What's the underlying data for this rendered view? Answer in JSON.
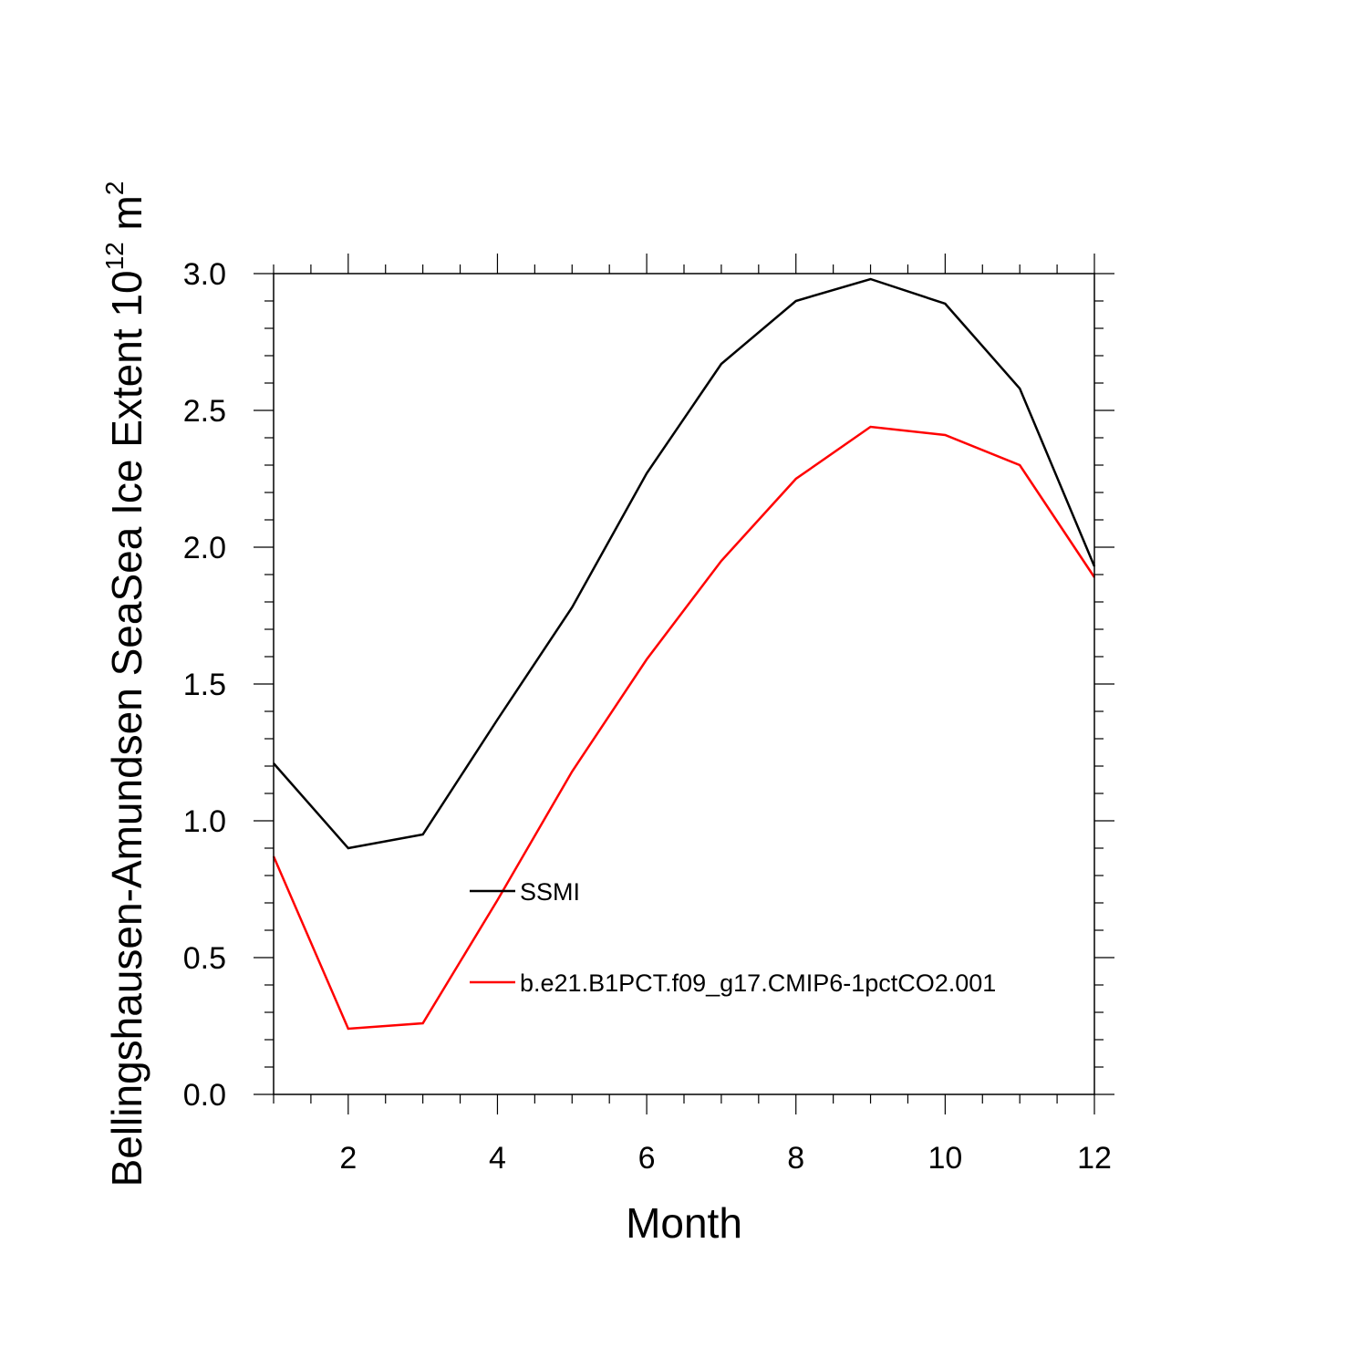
{
  "chart_data": {
    "type": "line",
    "title": "",
    "xlabel": "Month",
    "ylabel": {
      "main": "Bellingshausen-Amundsen SeaSea Ice Extent 10",
      "exponent": "12",
      "unit_prefix": " m",
      "unit_exponent": "2"
    },
    "xlim": [
      1,
      12
    ],
    "ylim": [
      0,
      3
    ],
    "x_ticks": [
      2,
      4,
      6,
      8,
      10,
      12
    ],
    "x_tick_labels": [
      "2",
      "4",
      "6",
      "8",
      "10",
      "12"
    ],
    "y_ticks": [
      0,
      0.5,
      1,
      1.5,
      2,
      2.5,
      3
    ],
    "y_tick_labels": [
      "0.0",
      "0.5",
      "1.0",
      "1.5",
      "2.0",
      "2.5",
      "3.0"
    ],
    "x": [
      1,
      2,
      3,
      4,
      5,
      6,
      7,
      8,
      9,
      10,
      11,
      12
    ],
    "series": [
      {
        "name": "SSMI",
        "color": "#000000",
        "values": [
          1.21,
          0.9,
          0.95,
          1.37,
          1.78,
          2.27,
          2.67,
          2.9,
          2.98,
          2.89,
          2.58,
          1.93
        ]
      },
      {
        "name": "b.e21.B1PCT.f09_g17.CMIP6-1pctCO2.001",
        "color": "#ff0000",
        "values": [
          0.87,
          0.24,
          0.26,
          0.71,
          1.18,
          1.59,
          1.95,
          2.25,
          2.44,
          2.41,
          2.3,
          1.89
        ]
      }
    ],
    "legend_position": "lower-center",
    "grid": false
  }
}
